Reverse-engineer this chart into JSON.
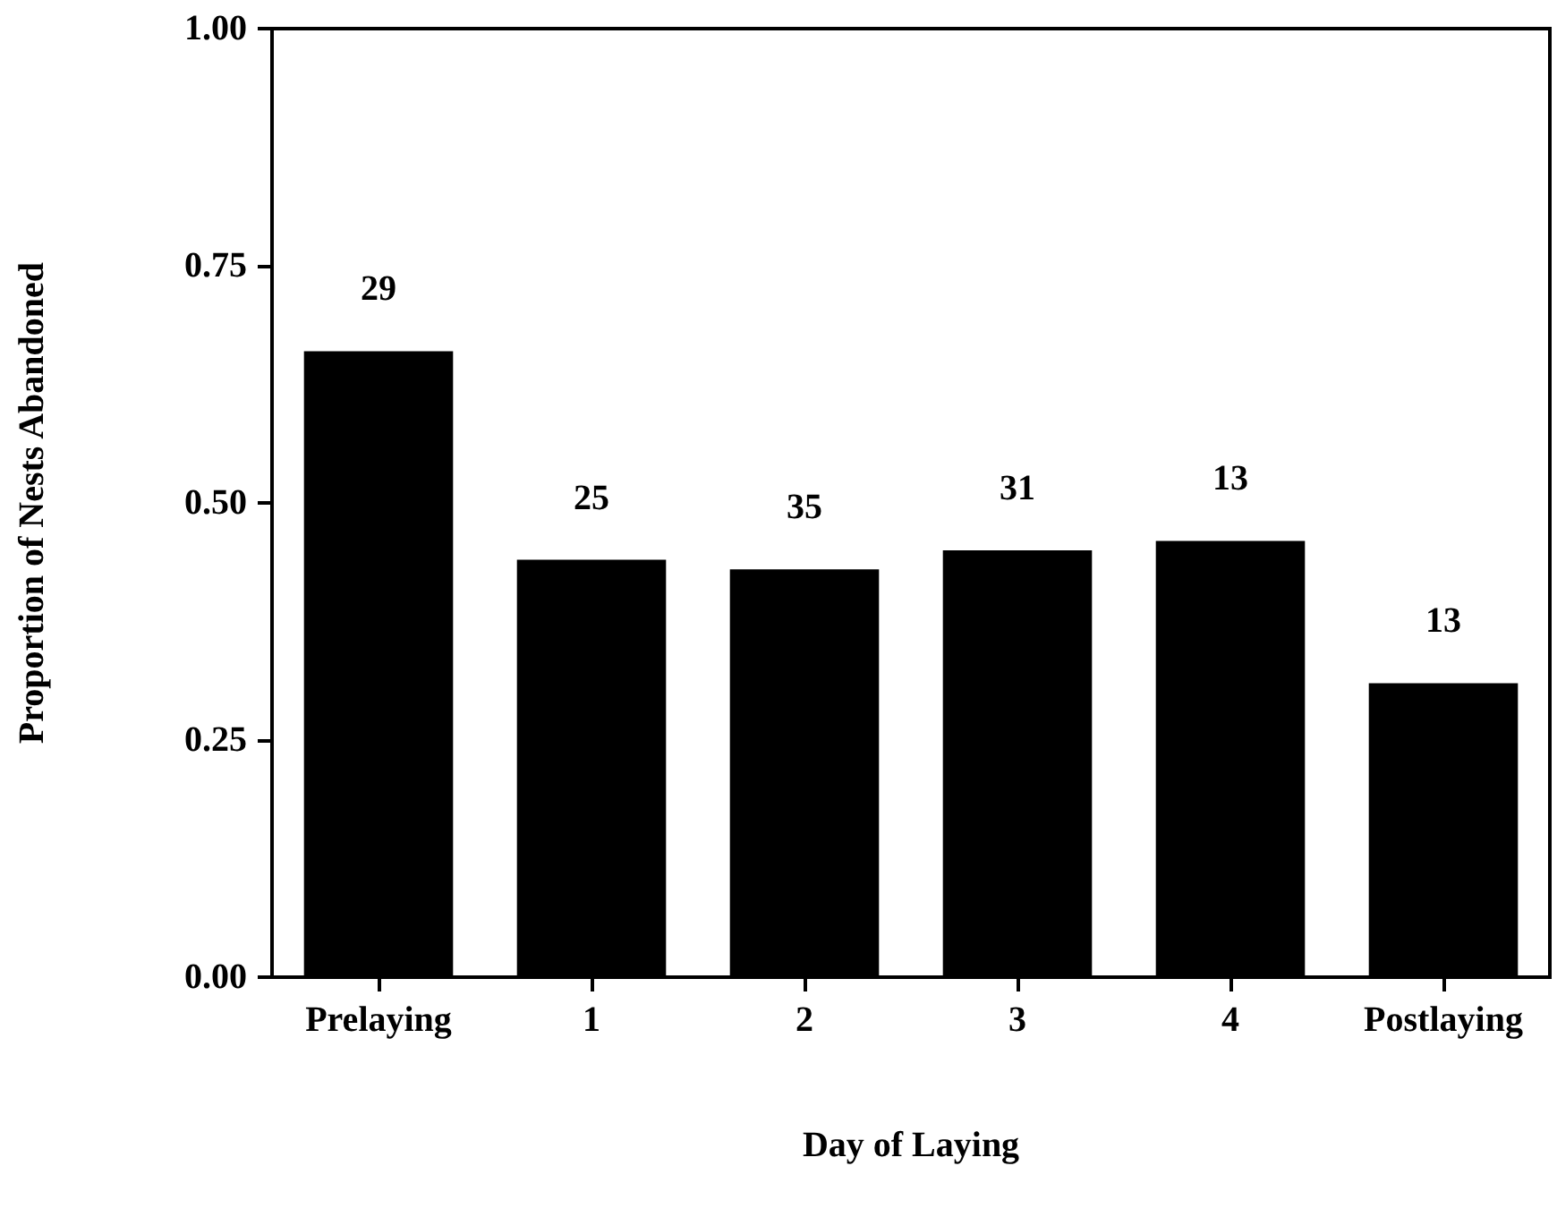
{
  "chart_data": {
    "type": "bar",
    "xlabel": "Day of Laying",
    "ylabel": "Proportion of Nests Abandoned",
    "categories": [
      "Prelaying",
      "1",
      "2",
      "3",
      "4",
      "Postlaying"
    ],
    "values": [
      0.66,
      0.44,
      0.43,
      0.45,
      0.46,
      0.31
    ],
    "annotations": [
      {
        "text": "29",
        "x": "Prelaying",
        "y": 0.66
      },
      {
        "text": "25",
        "x": "1",
        "y": 0.44
      },
      {
        "text": "35",
        "x": "2",
        "y": 0.43
      },
      {
        "text": "31",
        "x": "3",
        "y": 0.45
      },
      {
        "text": "13",
        "x": "4",
        "y": 0.46
      },
      {
        "text": "13",
        "x": "Postlaying",
        "y": 0.31
      }
    ],
    "color": "#000000",
    "ylim": [
      0,
      1
    ],
    "yticks": [
      {
        "value": 0,
        "label": "0.00"
      },
      {
        "value": 0.25,
        "label": "0.25"
      },
      {
        "value": 0.5,
        "label": "0.50"
      },
      {
        "value": 0.75,
        "label": "0.75"
      },
      {
        "value": 1,
        "label": "1.00"
      }
    ],
    "grid": false
  }
}
